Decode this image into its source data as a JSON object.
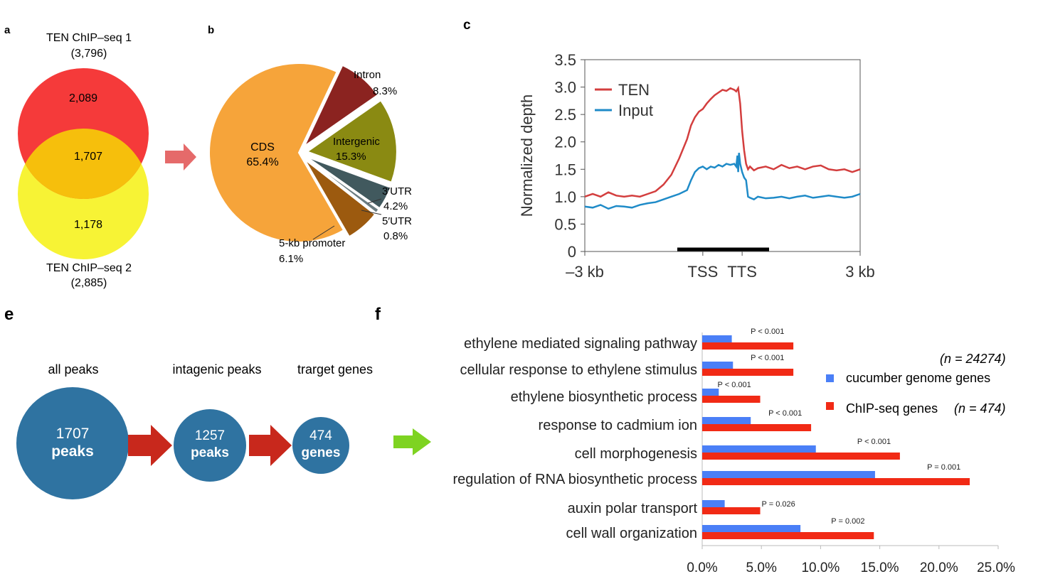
{
  "panel_labels": {
    "a": "a",
    "b": "b",
    "c": "c",
    "e": "e",
    "f": "f"
  },
  "colors": {
    "venn_top": "#f53a3a",
    "venn_bottom": "#f7f335",
    "venn_overlap": "#f6bf0c",
    "arrow_pink": "#e56a6a",
    "arrow_red": "#c8281c",
    "arrow_green": "#7ed321",
    "bubble": "#2f73a1",
    "bar_blue": "#4a7ff7",
    "bar_red": "#f12a15",
    "ten_line": "#d33e3e",
    "input_line": "#1f8bc8"
  },
  "venn": {
    "top_title": "TEN ChIP–seq 1",
    "top_total": "(3,796)",
    "top_only": "2,089",
    "overlap": "1,707",
    "bottom_only": "1,178",
    "bottom_title": "TEN ChIP–seq 2",
    "bottom_total": "(2,885)"
  },
  "flow": {
    "steps": [
      {
        "header": "all peaks",
        "number": "1707",
        "unit": "peaks"
      },
      {
        "header": "intagenic peaks",
        "number": "1257",
        "unit": "peaks"
      },
      {
        "header": "trarget genes",
        "number": "474",
        "unit": "genes"
      }
    ]
  },
  "chart_data": [
    {
      "panel": "b",
      "type": "pie",
      "slices": [
        {
          "name": "CDS",
          "value": 65.4,
          "label": "65.4%",
          "color": "#f6a43a"
        },
        {
          "name": "Intron",
          "value": 8.3,
          "label": "8.3%",
          "color": "#8b2320"
        },
        {
          "name": "Intergenic",
          "value": 15.3,
          "label": "15.3%",
          "color": "#8a8a12"
        },
        {
          "name": "3′UTR",
          "value": 4.2,
          "label": "4.2%",
          "color": "#41595e"
        },
        {
          "name": "5′UTR",
          "value": 0.8,
          "label": "0.8%",
          "color": "#6b7c80"
        },
        {
          "name": "5-kb promoter",
          "value": 6.1,
          "label": "6.1%",
          "color": "#9c5a0f"
        }
      ]
    },
    {
      "panel": "c",
      "type": "line",
      "ylabel": "Normalized depth",
      "ylim": [
        0,
        3.5
      ],
      "yticks": [
        "0",
        "0.5",
        "1.0",
        "1.5",
        "2.0",
        "2.5",
        "3.0",
        "3.5"
      ],
      "xticks": [
        "–3 kb",
        "TSS",
        "TTS",
        "3 kb"
      ],
      "x_tick_positions": [
        -3,
        0,
        1,
        4
      ],
      "x_units": "-3 to 0 = upstream kb, 0 to 1 = scaled gene body (TSS to TTS), 1 to 4 = downstream kb",
      "legend_position": "top-left",
      "series": [
        {
          "name": "TEN",
          "x": [
            -3,
            -2.8,
            -2.6,
            -2.4,
            -2.2,
            -2.0,
            -1.8,
            -1.6,
            -1.4,
            -1.2,
            -1.0,
            -0.8,
            -0.6,
            -0.4,
            -0.3,
            -0.2,
            -0.1,
            0,
            0.1,
            0.2,
            0.3,
            0.4,
            0.5,
            0.6,
            0.7,
            0.8,
            0.85,
            0.9,
            0.95,
            1.0,
            1.05,
            1.1,
            1.15,
            1.2,
            1.3,
            1.4,
            1.6,
            1.8,
            2.0,
            2.2,
            2.4,
            2.6,
            2.8,
            3.0,
            3.2,
            3.4,
            3.6,
            3.8,
            4.0
          ],
          "y": [
            1.0,
            1.05,
            1.0,
            1.08,
            1.02,
            1.0,
            1.02,
            1.0,
            1.05,
            1.1,
            1.22,
            1.4,
            1.7,
            2.05,
            2.3,
            2.45,
            2.55,
            2.6,
            2.7,
            2.78,
            2.85,
            2.9,
            2.95,
            2.93,
            2.98,
            2.95,
            2.92,
            2.98,
            2.7,
            2.2,
            1.85,
            1.6,
            1.5,
            1.55,
            1.48,
            1.52,
            1.55,
            1.5,
            1.58,
            1.52,
            1.55,
            1.5,
            1.55,
            1.57,
            1.5,
            1.48,
            1.5,
            1.45,
            1.5
          ]
        },
        {
          "name": "Input",
          "x": [
            -3,
            -2.8,
            -2.6,
            -2.4,
            -2.2,
            -2.0,
            -1.8,
            -1.6,
            -1.4,
            -1.2,
            -1.0,
            -0.8,
            -0.6,
            -0.4,
            -0.3,
            -0.2,
            -0.1,
            0,
            0.1,
            0.2,
            0.3,
            0.4,
            0.5,
            0.6,
            0.7,
            0.8,
            0.85,
            0.88,
            0.9,
            0.92,
            0.95,
            1.0,
            1.05,
            1.1,
            1.15,
            1.2,
            1.3,
            1.4,
            1.6,
            1.8,
            2.0,
            2.2,
            2.4,
            2.6,
            2.8,
            3.0,
            3.2,
            3.4,
            3.6,
            3.8,
            4.0
          ],
          "y": [
            0.82,
            0.8,
            0.85,
            0.78,
            0.83,
            0.82,
            0.8,
            0.85,
            0.88,
            0.9,
            0.95,
            1.0,
            1.05,
            1.12,
            1.3,
            1.45,
            1.52,
            1.55,
            1.5,
            1.55,
            1.53,
            1.58,
            1.55,
            1.6,
            1.58,
            1.6,
            1.55,
            1.75,
            1.45,
            1.8,
            1.6,
            1.45,
            1.35,
            1.3,
            1.0,
            0.98,
            0.95,
            1.0,
            0.97,
            0.98,
            1.0,
            0.97,
            1.0,
            1.02,
            0.98,
            1.0,
            1.02,
            1.0,
            0.98,
            1.0,
            1.05
          ]
        }
      ]
    },
    {
      "panel": "f",
      "type": "bar",
      "orientation": "horizontal",
      "categories": [
        "ethylene mediated signaling pathway",
        "cellular response to ethylene stimulus",
        "ethylene biosynthetic process",
        "response to cadmium ion",
        "cell morphogenesis",
        "regulation of RNA biosynthetic process",
        "auxin polar transport",
        "cell wall organization"
      ],
      "series": [
        {
          "name": "cucumber genome genes",
          "legend_n": "(n = 24274)",
          "values": [
            2.5,
            2.6,
            1.4,
            4.1,
            9.6,
            14.6,
            1.9,
            8.3
          ]
        },
        {
          "name": "ChIP-seq genes",
          "legend_n": "(n = 474)",
          "values": [
            7.7,
            7.7,
            4.9,
            9.2,
            16.7,
            22.6,
            4.9,
            14.5
          ]
        }
      ],
      "pvalues": [
        "P < 0.001",
        "P < 0.001",
        "P < 0.001",
        "P < 0.001",
        "P < 0.001",
        "P = 0.001",
        "P = 0.026",
        "P = 0.002"
      ],
      "xlim": [
        0,
        25
      ],
      "xticks": [
        "0.0%",
        "5.0%",
        "10.0%",
        "15.0%",
        "20.0%",
        "25.0%"
      ],
      "legend_position": "right"
    }
  ]
}
